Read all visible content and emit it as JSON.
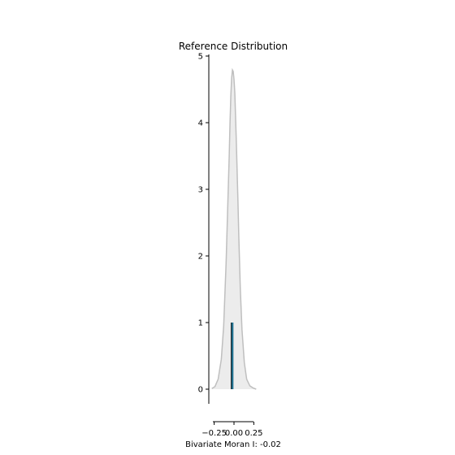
{
  "chart_data": {
    "type": "area",
    "title": "Reference Distribution",
    "xlabel": "Bivariate Moran I: -0.02",
    "ylabel": "",
    "xlim": [
      -0.32,
      0.32
    ],
    "ylim": [
      0,
      5
    ],
    "x_ticks": [
      -0.25,
      0.0,
      0.25
    ],
    "x_tick_labels": [
      "−0.25",
      "0.00",
      "0.25"
    ],
    "y_ticks": [
      0,
      1,
      2,
      3,
      4,
      5
    ],
    "y_tick_labels": [
      "0",
      "1",
      "2",
      "3",
      "4",
      "5"
    ],
    "grid": false,
    "density": {
      "x": [
        -0.28,
        -0.24,
        -0.2,
        -0.16,
        -0.13,
        -0.1,
        -0.08,
        -0.06,
        -0.05,
        -0.04,
        -0.03,
        -0.02,
        -0.01,
        0.0,
        0.01,
        0.02,
        0.03,
        0.04,
        0.05,
        0.06,
        0.08,
        0.1,
        0.13,
        0.16,
        0.2,
        0.24,
        0.28
      ],
      "y": [
        0.01,
        0.04,
        0.15,
        0.45,
        0.95,
        1.9,
        2.7,
        3.5,
        4.0,
        4.4,
        4.67,
        4.79,
        4.77,
        4.65,
        4.45,
        4.1,
        3.7,
        3.25,
        2.8,
        2.3,
        1.5,
        0.9,
        0.4,
        0.15,
        0.05,
        0.02,
        0.0
      ],
      "fill_color": "#ececec",
      "line_color": "#bfbfbf"
    },
    "observed_value": -0.02,
    "observed_height": 1,
    "observed_color": "#1f6e8c"
  }
}
